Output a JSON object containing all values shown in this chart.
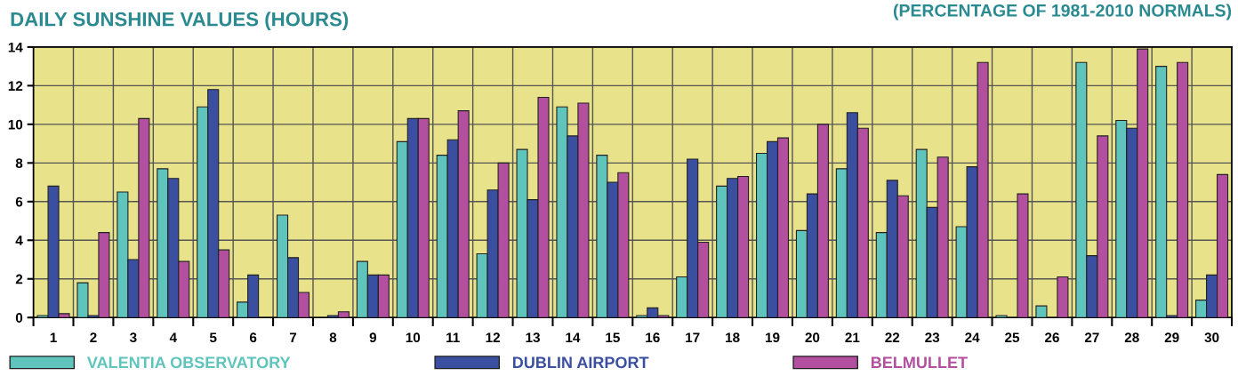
{
  "chart_data": {
    "type": "bar",
    "title": "DAILY SUNSHINE VALUES (HOURS)",
    "subtitle": "(PERCENTAGE OF 1981-2010 NORMALS)",
    "categories": [
      "1",
      "2",
      "3",
      "4",
      "5",
      "6",
      "7",
      "8",
      "9",
      "10",
      "11",
      "12",
      "13",
      "14",
      "15",
      "16",
      "17",
      "18",
      "19",
      "20",
      "21",
      "22",
      "23",
      "24",
      "25",
      "26",
      "27",
      "28",
      "29",
      "30"
    ],
    "series": [
      {
        "name": "VALENTIA OBSERVATORY",
        "color": "#5ec4bc",
        "values": [
          0.1,
          1.8,
          6.5,
          7.7,
          10.9,
          0.8,
          5.3,
          0,
          2.9,
          9.1,
          8.4,
          3.3,
          8.7,
          10.9,
          8.4,
          0.1,
          2.1,
          6.8,
          8.5,
          4.5,
          7.7,
          4.4,
          8.7,
          4.7,
          0.1,
          0.6,
          13.2,
          10.2,
          13.0,
          0.9
        ]
      },
      {
        "name": "DUBLIN AIRPORT",
        "color": "#3a4fa0",
        "values": [
          6.8,
          0.1,
          3.0,
          7.2,
          11.8,
          2.2,
          3.1,
          0.1,
          2.2,
          10.3,
          9.2,
          6.6,
          6.1,
          9.4,
          7.0,
          0.5,
          8.2,
          7.2,
          9.1,
          6.4,
          10.6,
          7.1,
          5.7,
          7.8,
          0,
          0,
          3.2,
          9.8,
          0.1,
          2.2
        ]
      },
      {
        "name": "BELMULLET",
        "color": "#b24f9f",
        "values": [
          0.2,
          4.4,
          10.3,
          2.9,
          3.5,
          0,
          1.3,
          0.3,
          2.2,
          10.3,
          10.7,
          8.0,
          11.4,
          11.1,
          7.5,
          0.1,
          3.9,
          7.3,
          9.3,
          10.0,
          9.8,
          6.3,
          8.3,
          13.2,
          6.4,
          2.1,
          9.4,
          13.9,
          13.2,
          7.4
        ]
      }
    ],
    "ylim": [
      0,
      14
    ],
    "yticks": [
      0,
      2,
      4,
      6,
      8,
      10,
      12,
      14
    ],
    "grid": true,
    "legend": "bottom"
  }
}
